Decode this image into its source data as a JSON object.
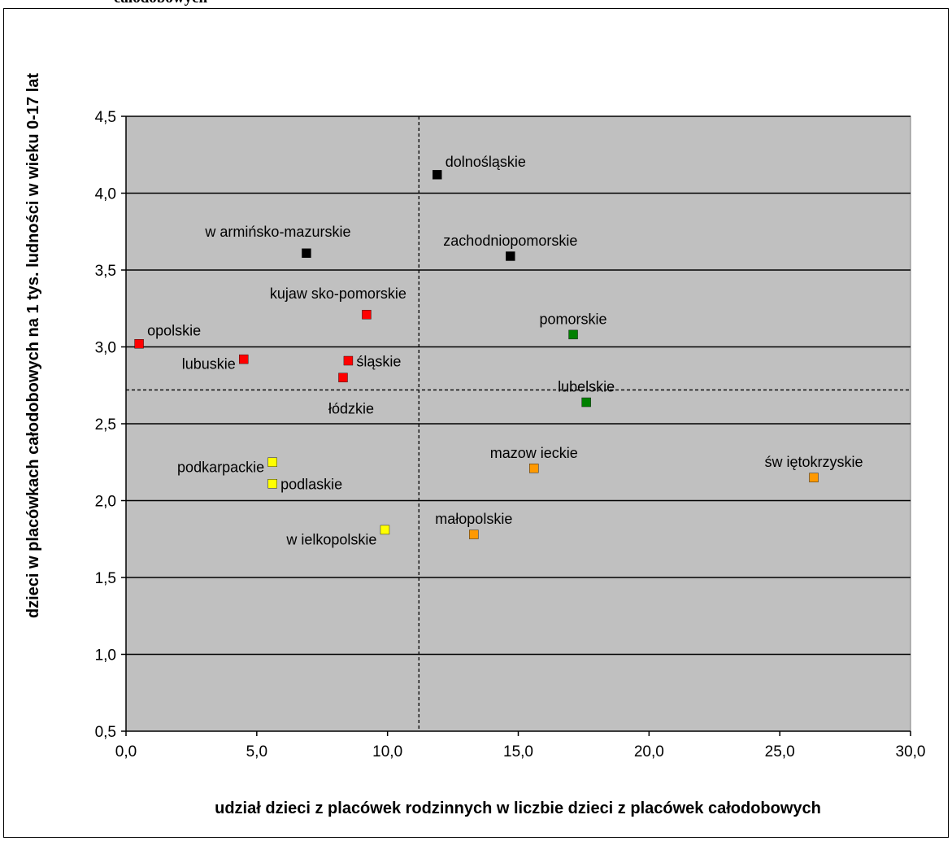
{
  "clipped_title": "całodobowych",
  "chart_data": {
    "type": "scatter",
    "xlabel": "udział dzieci z placówek rodzinnych w liczbie dzieci z placówek całodobowych",
    "ylabel": "dzieci w placówkach całodobowych na 1 tys. ludności w wieku 0-17 lat",
    "xlim": [
      0,
      30
    ],
    "ylim": [
      0.5,
      4.5
    ],
    "x_ticks": [
      0,
      5,
      10,
      15,
      20,
      25,
      30
    ],
    "y_ticks": [
      0.5,
      1.0,
      1.5,
      2.0,
      2.5,
      3.0,
      3.5,
      4.0,
      4.5
    ],
    "decimal_separator": ",",
    "grid": "horizontal",
    "plot_background": "#c0c0c0",
    "reference_lines": {
      "x": 11.2,
      "y": 2.72
    },
    "points": [
      {
        "label": "dolnośląskie",
        "x": 11.9,
        "y": 4.12,
        "color": "#000000",
        "label_pos": "above-right"
      },
      {
        "label": "w armińsko-mazurskie",
        "x": 6.9,
        "y": 3.61,
        "color": "#000000",
        "label_pos": "above-left"
      },
      {
        "label": "zachodniopomorskie",
        "x": 14.7,
        "y": 3.59,
        "color": "#000000",
        "label_pos": "above"
      },
      {
        "label": "kujaw sko-pomorskie",
        "x": 9.2,
        "y": 3.21,
        "color": "#ff0000",
        "label_pos": "above-left"
      },
      {
        "label": "opolskie",
        "x": 0.5,
        "y": 3.02,
        "color": "#ff0000",
        "label_pos": "above-right"
      },
      {
        "label": "lubuskie",
        "x": 4.5,
        "y": 2.92,
        "color": "#ff0000",
        "label_pos": "left"
      },
      {
        "label": "śląskie",
        "x": 8.5,
        "y": 2.91,
        "color": "#ff0000",
        "label_pos": "right"
      },
      {
        "label": "łódzkie",
        "x": 8.3,
        "y": 2.8,
        "color": "#ff0000",
        "label_pos": "below"
      },
      {
        "label": "pomorskie",
        "x": 17.1,
        "y": 3.08,
        "color": "#008000",
        "label_pos": "above"
      },
      {
        "label": "lubelskie",
        "x": 17.6,
        "y": 2.64,
        "color": "#008000",
        "label_pos": "above"
      },
      {
        "label": "podkarpackie",
        "x": 5.6,
        "y": 2.25,
        "color": "#ffff00",
        "label_pos": "left"
      },
      {
        "label": "podlaskie",
        "x": 5.6,
        "y": 2.11,
        "color": "#ffff00",
        "label_pos": "right"
      },
      {
        "label": "w ielkopolskie",
        "x": 9.9,
        "y": 1.81,
        "color": "#ffff00",
        "label_pos": "below-left"
      },
      {
        "label": "mazow ieckie",
        "x": 15.6,
        "y": 2.21,
        "color": "#ff9900",
        "label_pos": "above"
      },
      {
        "label": "małopolskie",
        "x": 13.3,
        "y": 1.78,
        "color": "#ff9900",
        "label_pos": "above"
      },
      {
        "label": "św iętokrzyskie",
        "x": 26.3,
        "y": 2.15,
        "color": "#ff9900",
        "label_pos": "above"
      }
    ]
  }
}
